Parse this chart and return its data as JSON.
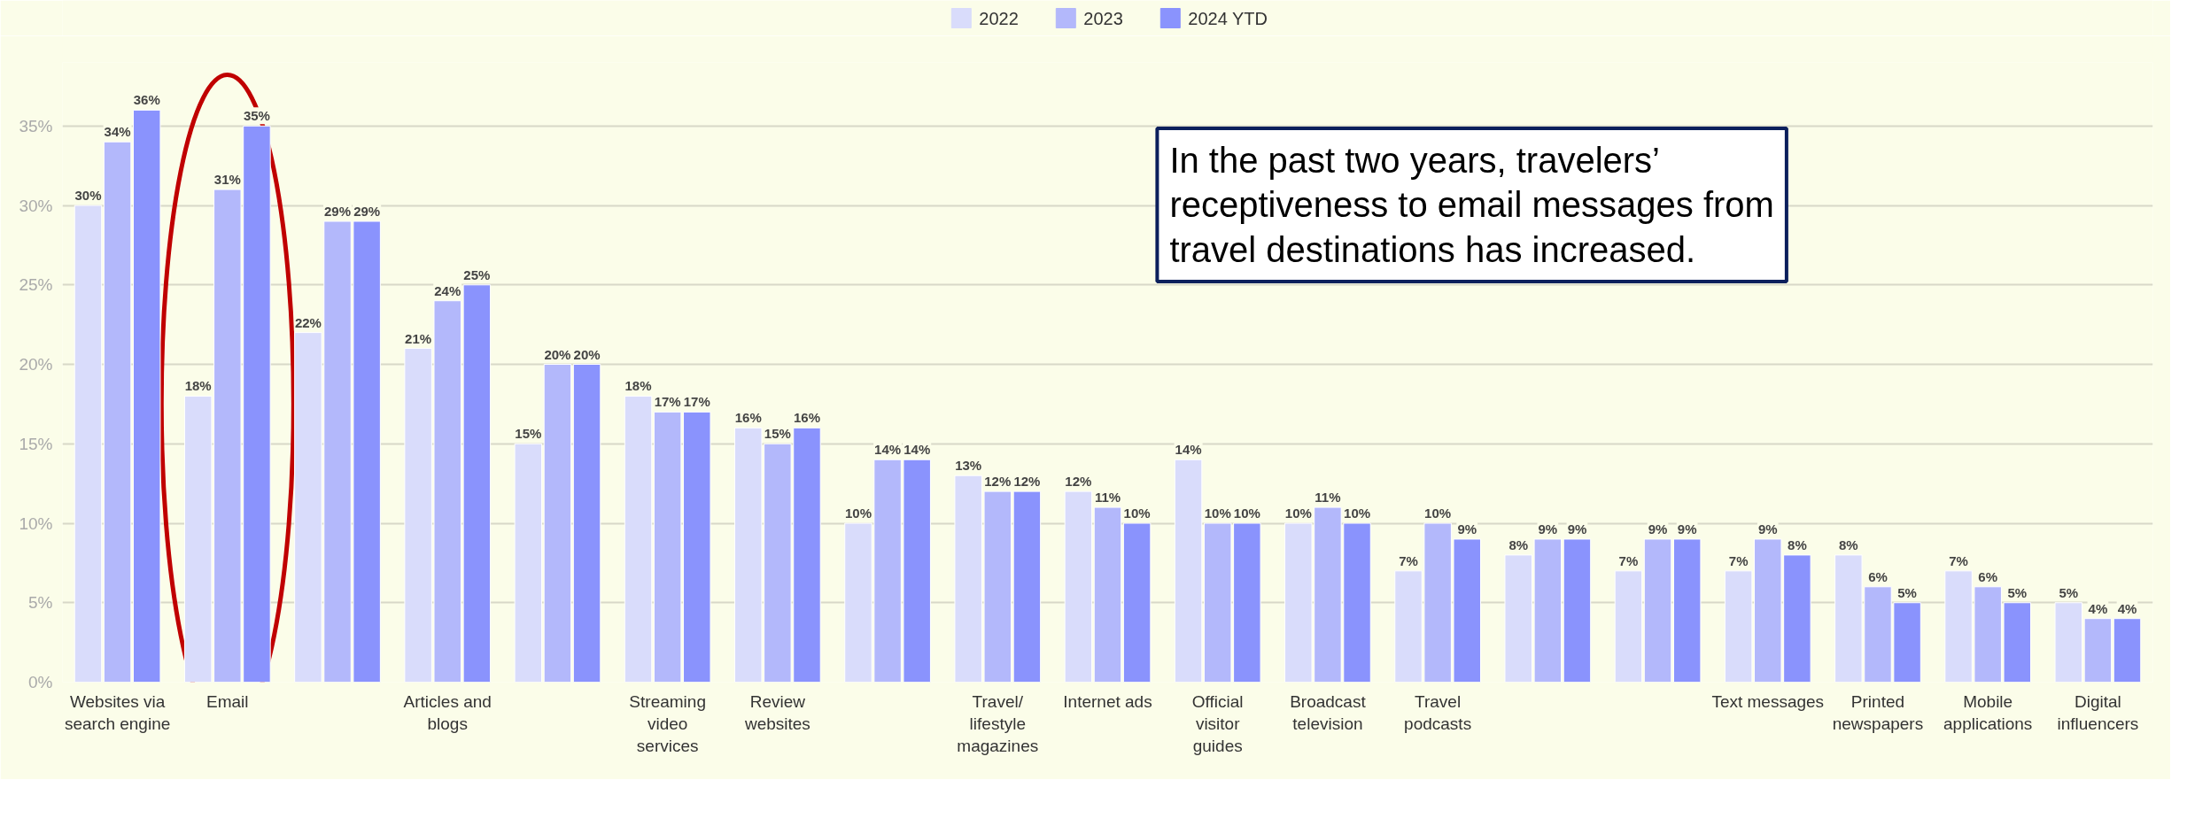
{
  "chart_data": {
    "type": "bar",
    "categories": [
      "Websites via search engine",
      "Email",
      null,
      "Articles and blogs",
      null,
      "Streaming video services",
      "Review websites",
      null,
      "Travel/ lifestyle magazines",
      "Internet ads",
      "Official visitor guides",
      "Broadcast television",
      "Travel podcasts",
      null,
      null,
      "Text messages",
      "Printed newspapers",
      "Mobile applications",
      "Digital influencers"
    ],
    "series": [
      {
        "name": "2022",
        "color": "#d9dcfb",
        "values": [
          30,
          18,
          22,
          21,
          15,
          18,
          16,
          10,
          13,
          12,
          14,
          10,
          7,
          8,
          7,
          7,
          8,
          7,
          5
        ]
      },
      {
        "name": "2023",
        "color": "#b3b8fb",
        "values": [
          34,
          31,
          29,
          24,
          20,
          17,
          15,
          14,
          12,
          11,
          10,
          11,
          10,
          9,
          9,
          9,
          6,
          6,
          4
        ]
      },
      {
        "name": "2024 YTD",
        "color": "#8a93fd",
        "values": [
          36,
          35,
          29,
          25,
          20,
          17,
          16,
          14,
          12,
          10,
          10,
          10,
          9,
          9,
          9,
          8,
          5,
          5,
          4
        ]
      }
    ],
    "ylim": [
      0,
      39
    ],
    "yticks": [
      {
        "value": 0,
        "label": "0%"
      },
      {
        "value": 5,
        "label": "5%"
      },
      {
        "value": 10,
        "label": "10%"
      },
      {
        "value": 15,
        "label": "15%"
      },
      {
        "value": 20,
        "label": "20%"
      },
      {
        "value": 25,
        "label": "25%"
      },
      {
        "value": 30,
        "label": "30%"
      },
      {
        "value": 35,
        "label": "35%"
      }
    ],
    "grid": "y",
    "legend": "top",
    "value_labels": [
      [
        "30%",
        "18%",
        "22%",
        "21%",
        "15%",
        "18%",
        "16%",
        "10%",
        "13%",
        "12%",
        "14%",
        "10%",
        "7%",
        "8%",
        "7%",
        "7%",
        "8%",
        "7%",
        "5%"
      ],
      [
        "34%",
        "31%",
        "29%",
        "24%",
        "20%",
        "17%",
        "15%",
        "14%",
        "12%",
        "11%",
        "10%",
        "11%",
        "10%",
        "9%",
        "9%",
        "9%",
        "6%",
        "6%",
        "4%"
      ],
      [
        "36%",
        "35%",
        "29%",
        "25%",
        "20%",
        "17%",
        "16%",
        "14%",
        "12%",
        "10%",
        "10%",
        "10%",
        "9%",
        "9%",
        "9%",
        "8%",
        "5%",
        "5%",
        "4%"
      ]
    ],
    "annotations": [
      "In the past two years, travelers’ receptiveness to email messages from travel destinations has increased."
    ]
  }
}
